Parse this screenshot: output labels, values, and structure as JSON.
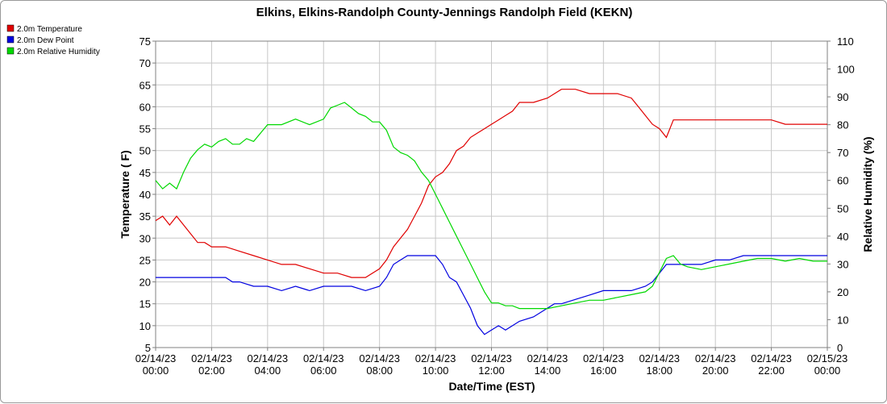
{
  "chart_data": {
    "type": "line",
    "title": "Elkins, Elkins-Randolph County-Jennings Randolph Field (KEKN)",
    "xlabel": "Date/Time (EST)",
    "ylabel": "Temperature ( F)",
    "y2label": "Relative Humidity (%)",
    "xlim_hours": [
      0,
      24
    ],
    "ylim": [
      5,
      75
    ],
    "y2lim": [
      0,
      110
    ],
    "y_ticks": [
      5,
      10,
      15,
      20,
      25,
      30,
      35,
      40,
      45,
      50,
      55,
      60,
      65,
      70,
      75
    ],
    "y2_ticks": [
      0,
      10,
      20,
      30,
      40,
      50,
      60,
      70,
      80,
      90,
      100,
      110
    ],
    "x_ticks": [
      {
        "date": "02/14/23",
        "time": "00:00"
      },
      {
        "date": "02/14/23",
        "time": "02:00"
      },
      {
        "date": "02/14/23",
        "time": "04:00"
      },
      {
        "date": "02/14/23",
        "time": "06:00"
      },
      {
        "date": "02/14/23",
        "time": "08:00"
      },
      {
        "date": "02/14/23",
        "time": "10:00"
      },
      {
        "date": "02/14/23",
        "time": "12:00"
      },
      {
        "date": "02/14/23",
        "time": "14:00"
      },
      {
        "date": "02/14/23",
        "time": "16:00"
      },
      {
        "date": "02/14/23",
        "time": "18:00"
      },
      {
        "date": "02/14/23",
        "time": "20:00"
      },
      {
        "date": "02/14/23",
        "time": "22:00"
      },
      {
        "date": "02/15/23",
        "time": "00:00"
      }
    ],
    "grid": true,
    "legend_position": "top-left",
    "series": [
      {
        "name": "2.0m Temperature",
        "color": "#e00000",
        "axis": "left",
        "points": [
          [
            0,
            34
          ],
          [
            0.25,
            35
          ],
          [
            0.5,
            33
          ],
          [
            0.75,
            35
          ],
          [
            1.0,
            33
          ],
          [
            1.25,
            31
          ],
          [
            1.5,
            29
          ],
          [
            1.75,
            29
          ],
          [
            2.0,
            28
          ],
          [
            2.5,
            28
          ],
          [
            3.0,
            27
          ],
          [
            3.5,
            26
          ],
          [
            4.0,
            25
          ],
          [
            4.5,
            24
          ],
          [
            5.0,
            24
          ],
          [
            5.5,
            23
          ],
          [
            6.0,
            22
          ],
          [
            6.5,
            22
          ],
          [
            7.0,
            21
          ],
          [
            7.5,
            21
          ],
          [
            8.0,
            23
          ],
          [
            8.25,
            25
          ],
          [
            8.5,
            28
          ],
          [
            8.75,
            30
          ],
          [
            9.0,
            32
          ],
          [
            9.25,
            35
          ],
          [
            9.5,
            38
          ],
          [
            9.75,
            42
          ],
          [
            10.0,
            44
          ],
          [
            10.25,
            45
          ],
          [
            10.5,
            47
          ],
          [
            10.75,
            50
          ],
          [
            11.0,
            51
          ],
          [
            11.25,
            53
          ],
          [
            11.5,
            54
          ],
          [
            11.75,
            55
          ],
          [
            12.0,
            56
          ],
          [
            12.25,
            57
          ],
          [
            12.5,
            58
          ],
          [
            12.75,
            59
          ],
          [
            13.0,
            61
          ],
          [
            13.5,
            61
          ],
          [
            14.0,
            62
          ],
          [
            14.5,
            64
          ],
          [
            15.0,
            64
          ],
          [
            15.5,
            63
          ],
          [
            16.0,
            63
          ],
          [
            16.5,
            63
          ],
          [
            17.0,
            62
          ],
          [
            17.25,
            60
          ],
          [
            17.5,
            58
          ],
          [
            17.75,
            56
          ],
          [
            18.0,
            55
          ],
          [
            18.25,
            53
          ],
          [
            18.5,
            57
          ],
          [
            19.0,
            57
          ],
          [
            19.5,
            57
          ],
          [
            20.0,
            57
          ],
          [
            20.5,
            57
          ],
          [
            21.0,
            57
          ],
          [
            21.5,
            57
          ],
          [
            22.0,
            57
          ],
          [
            22.5,
            56
          ],
          [
            23.0,
            56
          ],
          [
            23.5,
            56
          ],
          [
            24.0,
            56
          ]
        ]
      },
      {
        "name": "2.0m Dew Point",
        "color": "#0000e0",
        "axis": "left",
        "points": [
          [
            0,
            21
          ],
          [
            1.0,
            21
          ],
          [
            2.0,
            21
          ],
          [
            2.5,
            21
          ],
          [
            2.75,
            20
          ],
          [
            3.0,
            20
          ],
          [
            3.5,
            19
          ],
          [
            4.0,
            19
          ],
          [
            4.5,
            18
          ],
          [
            5.0,
            19
          ],
          [
            5.5,
            18
          ],
          [
            6.0,
            19
          ],
          [
            6.5,
            19
          ],
          [
            7.0,
            19
          ],
          [
            7.5,
            18
          ],
          [
            8.0,
            19
          ],
          [
            8.25,
            21
          ],
          [
            8.5,
            24
          ],
          [
            8.75,
            25
          ],
          [
            9.0,
            26
          ],
          [
            9.5,
            26
          ],
          [
            10.0,
            26
          ],
          [
            10.25,
            24
          ],
          [
            10.5,
            21
          ],
          [
            10.75,
            20
          ],
          [
            11.0,
            17
          ],
          [
            11.25,
            14
          ],
          [
            11.5,
            10
          ],
          [
            11.75,
            8
          ],
          [
            12.0,
            9
          ],
          [
            12.25,
            10
          ],
          [
            12.5,
            9
          ],
          [
            12.75,
            10
          ],
          [
            13.0,
            11
          ],
          [
            13.5,
            12
          ],
          [
            14.0,
            14
          ],
          [
            14.25,
            15
          ],
          [
            14.5,
            15
          ],
          [
            15.0,
            16
          ],
          [
            15.5,
            17
          ],
          [
            16.0,
            18
          ],
          [
            16.5,
            18
          ],
          [
            17.0,
            18
          ],
          [
            17.5,
            19
          ],
          [
            17.75,
            20
          ],
          [
            18.0,
            22
          ],
          [
            18.25,
            24
          ],
          [
            18.5,
            24
          ],
          [
            19.0,
            24
          ],
          [
            19.5,
            24
          ],
          [
            20.0,
            25
          ],
          [
            20.5,
            25
          ],
          [
            21.0,
            26
          ],
          [
            21.5,
            26
          ],
          [
            22.0,
            26
          ],
          [
            22.5,
            26
          ],
          [
            23.0,
            26
          ],
          [
            23.5,
            26
          ],
          [
            24.0,
            26
          ]
        ]
      },
      {
        "name": "2.0m Relative Humidity",
        "color": "#00d800",
        "axis": "right",
        "points": [
          [
            0,
            60
          ],
          [
            0.25,
            57
          ],
          [
            0.5,
            59
          ],
          [
            0.75,
            57
          ],
          [
            1.0,
            63
          ],
          [
            1.25,
            68
          ],
          [
            1.5,
            71
          ],
          [
            1.75,
            73
          ],
          [
            2.0,
            72
          ],
          [
            2.25,
            74
          ],
          [
            2.5,
            75
          ],
          [
            2.75,
            73
          ],
          [
            3.0,
            73
          ],
          [
            3.25,
            75
          ],
          [
            3.5,
            74
          ],
          [
            4.0,
            80
          ],
          [
            4.5,
            80
          ],
          [
            5.0,
            82
          ],
          [
            5.5,
            80
          ],
          [
            6.0,
            82
          ],
          [
            6.25,
            86
          ],
          [
            6.5,
            87
          ],
          [
            6.75,
            88
          ],
          [
            7.0,
            86
          ],
          [
            7.25,
            84
          ],
          [
            7.5,
            83
          ],
          [
            7.75,
            81
          ],
          [
            8.0,
            81
          ],
          [
            8.25,
            78
          ],
          [
            8.5,
            72
          ],
          [
            8.75,
            70
          ],
          [
            9.0,
            69
          ],
          [
            9.25,
            67
          ],
          [
            9.5,
            63
          ],
          [
            9.75,
            60
          ],
          [
            10.0,
            55
          ],
          [
            10.25,
            50
          ],
          [
            10.5,
            45
          ],
          [
            10.75,
            40
          ],
          [
            11.0,
            35
          ],
          [
            11.25,
            30
          ],
          [
            11.5,
            25
          ],
          [
            11.75,
            20
          ],
          [
            12.0,
            16
          ],
          [
            12.25,
            16
          ],
          [
            12.5,
            15
          ],
          [
            12.75,
            15
          ],
          [
            13.0,
            14
          ],
          [
            13.5,
            14
          ],
          [
            14.0,
            14
          ],
          [
            14.5,
            15
          ],
          [
            15.0,
            16
          ],
          [
            15.5,
            17
          ],
          [
            16.0,
            17
          ],
          [
            16.5,
            18
          ],
          [
            17.0,
            19
          ],
          [
            17.5,
            20
          ],
          [
            17.75,
            22
          ],
          [
            18.0,
            27
          ],
          [
            18.25,
            32
          ],
          [
            18.5,
            33
          ],
          [
            18.75,
            30
          ],
          [
            19.0,
            29
          ],
          [
            19.5,
            28
          ],
          [
            20.0,
            29
          ],
          [
            20.5,
            30
          ],
          [
            21.0,
            31
          ],
          [
            21.5,
            32
          ],
          [
            22.0,
            32
          ],
          [
            22.5,
            31
          ],
          [
            23.0,
            32
          ],
          [
            23.5,
            31
          ],
          [
            24.0,
            31
          ]
        ]
      }
    ]
  }
}
